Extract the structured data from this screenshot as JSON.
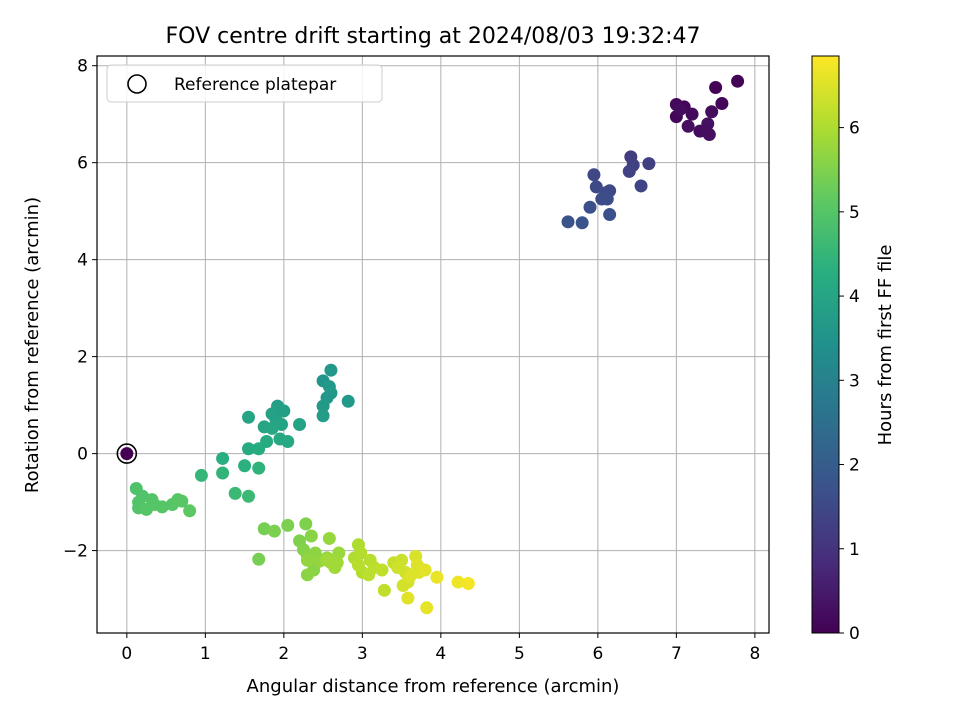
{
  "chart_data": {
    "type": "scatter",
    "title": "FOV centre drift starting at 2024/08/03 19:32:47",
    "xlabel": "Angular distance from reference (arcmin)",
    "ylabel": "Rotation from reference (arcmin)",
    "xlim": [
      -0.38,
      8.18
    ],
    "ylim": [
      -3.7,
      8.2
    ],
    "xticks": [
      0,
      1,
      2,
      3,
      4,
      5,
      6,
      7,
      8
    ],
    "yticks": [
      -2,
      0,
      2,
      4,
      6,
      8
    ],
    "grid": true,
    "legend": {
      "position": "top-left",
      "entries": [
        {
          "label": "Reference platepar",
          "marker": "hollow-circle"
        }
      ]
    },
    "colorbar": {
      "label": "Hours from first FF file",
      "colormap": "viridis",
      "range": [
        0,
        6.85
      ],
      "ticks": [
        0,
        1,
        2,
        3,
        4,
        5,
        6
      ]
    },
    "reference_point": {
      "x": 0,
      "y": 0,
      "hours": 0
    },
    "points": [
      [
        7.0,
        6.95,
        0.1
      ],
      [
        7.1,
        7.15,
        0.1
      ],
      [
        7.0,
        7.2,
        0.15
      ],
      [
        7.2,
        7.0,
        0.15
      ],
      [
        7.3,
        6.65,
        0.2
      ],
      [
        7.45,
        7.05,
        0.2
      ],
      [
        7.5,
        7.55,
        0.05
      ],
      [
        7.58,
        7.22,
        0.1
      ],
      [
        7.78,
        7.68,
        0.05
      ],
      [
        7.15,
        6.75,
        0.25
      ],
      [
        7.4,
        6.8,
        0.3
      ],
      [
        7.42,
        6.58,
        0.3
      ],
      [
        7.38,
        6.65,
        0.25
      ],
      [
        7.05,
        7.1,
        0.2
      ],
      [
        6.42,
        6.12,
        1.2
      ],
      [
        6.45,
        5.95,
        1.3
      ],
      [
        6.65,
        5.98,
        1.25
      ],
      [
        6.4,
        5.82,
        1.35
      ],
      [
        6.55,
        5.52,
        1.4
      ],
      [
        5.95,
        5.75,
        1.45
      ],
      [
        5.98,
        5.5,
        1.5
      ],
      [
        6.1,
        5.38,
        1.55
      ],
      [
        6.15,
        5.42,
        1.5
      ],
      [
        6.05,
        5.25,
        1.6
      ],
      [
        6.12,
        5.25,
        1.6
      ],
      [
        5.9,
        5.08,
        1.65
      ],
      [
        6.15,
        4.93,
        1.7
      ],
      [
        5.62,
        4.78,
        1.75
      ],
      [
        5.8,
        4.76,
        1.8
      ],
      [
        2.6,
        1.72,
        3.6
      ],
      [
        2.5,
        1.5,
        3.55
      ],
      [
        2.58,
        1.38,
        3.6
      ],
      [
        2.6,
        1.25,
        3.65
      ],
      [
        2.55,
        1.15,
        3.6
      ],
      [
        2.82,
        1.08,
        3.65
      ],
      [
        2.5,
        0.98,
        3.7
      ],
      [
        2.5,
        0.78,
        3.75
      ],
      [
        1.92,
        0.98,
        3.8
      ],
      [
        2.0,
        0.88,
        3.85
      ],
      [
        1.85,
        0.82,
        3.9
      ],
      [
        1.9,
        0.7,
        3.9
      ],
      [
        2.2,
        0.6,
        3.95
      ],
      [
        1.97,
        0.6,
        3.95
      ],
      [
        1.75,
        0.55,
        4.0
      ],
      [
        1.55,
        0.75,
        4.0
      ],
      [
        1.85,
        0.52,
        4.05
      ],
      [
        1.95,
        0.3,
        4.1
      ],
      [
        2.05,
        0.25,
        4.1
      ],
      [
        1.78,
        0.25,
        4.15
      ],
      [
        1.55,
        0.1,
        4.15
      ],
      [
        1.68,
        0.1,
        4.2
      ],
      [
        1.22,
        -0.1,
        4.3
      ],
      [
        1.5,
        -0.25,
        4.35
      ],
      [
        1.68,
        -0.3,
        4.4
      ],
      [
        0.95,
        -0.45,
        4.5
      ],
      [
        1.22,
        -0.4,
        4.45
      ],
      [
        1.38,
        -0.82,
        4.6
      ],
      [
        1.55,
        -0.88,
        4.6
      ],
      [
        0.12,
        -0.72,
        4.9
      ],
      [
        0.2,
        -0.88,
        4.9
      ],
      [
        0.15,
        -1.0,
        4.95
      ],
      [
        0.15,
        -1.12,
        4.95
      ],
      [
        0.25,
        -1.15,
        5.0
      ],
      [
        0.32,
        -0.95,
        4.95
      ],
      [
        0.35,
        -1.05,
        5.0
      ],
      [
        0.45,
        -1.1,
        5.0
      ],
      [
        0.58,
        -1.05,
        5.0
      ],
      [
        0.65,
        -0.95,
        5.05
      ],
      [
        0.7,
        -0.98,
        5.05
      ],
      [
        0.8,
        -1.18,
        5.1
      ],
      [
        1.75,
        -1.55,
        5.4
      ],
      [
        1.88,
        -1.6,
        5.45
      ],
      [
        1.68,
        -2.18,
        5.4
      ],
      [
        2.05,
        -1.48,
        5.45
      ],
      [
        2.2,
        -1.8,
        5.5
      ],
      [
        2.25,
        -1.98,
        5.55
      ],
      [
        2.28,
        -1.45,
        5.5
      ],
      [
        2.3,
        -2.1,
        5.6
      ],
      [
        2.35,
        -1.7,
        5.6
      ],
      [
        2.4,
        -2.05,
        5.65
      ],
      [
        2.38,
        -2.4,
        5.6
      ],
      [
        2.45,
        -2.22,
        5.7
      ],
      [
        2.3,
        -2.5,
        5.65
      ],
      [
        2.55,
        -2.15,
        5.75
      ],
      [
        2.58,
        -1.75,
        5.75
      ],
      [
        2.6,
        -2.25,
        5.8
      ],
      [
        2.7,
        -2.05,
        5.8
      ],
      [
        2.68,
        -2.25,
        5.85
      ],
      [
        2.65,
        -2.35,
        5.85
      ],
      [
        2.55,
        -2.2,
        5.85
      ],
      [
        2.3,
        -2.2,
        5.7
      ],
      [
        2.95,
        -1.88,
        6.0
      ],
      [
        2.9,
        -2.15,
        6.0
      ],
      [
        2.98,
        -2.05,
        6.05
      ],
      [
        3.0,
        -2.45,
        6.05
      ],
      [
        2.95,
        -2.3,
        6.1
      ],
      [
        3.1,
        -2.2,
        6.1
      ],
      [
        3.15,
        -2.35,
        6.15
      ],
      [
        3.08,
        -2.5,
        6.15
      ],
      [
        3.25,
        -2.4,
        6.2
      ],
      [
        3.28,
        -2.82,
        6.2
      ],
      [
        3.4,
        -2.25,
        6.25
      ],
      [
        3.5,
        -2.2,
        6.3
      ],
      [
        3.55,
        -2.45,
        6.35
      ],
      [
        3.58,
        -2.65,
        6.4
      ],
      [
        3.52,
        -2.72,
        6.4
      ],
      [
        3.6,
        -2.55,
        6.45
      ],
      [
        3.68,
        -2.12,
        6.45
      ],
      [
        3.7,
        -2.3,
        6.5
      ],
      [
        3.72,
        -2.45,
        6.5
      ],
      [
        3.8,
        -2.4,
        6.55
      ],
      [
        3.58,
        -2.98,
        6.55
      ],
      [
        3.82,
        -3.18,
        6.6
      ],
      [
        3.95,
        -2.55,
        6.65
      ],
      [
        4.22,
        -2.65,
        6.7
      ],
      [
        4.35,
        -2.68,
        6.75
      ],
      [
        3.62,
        -2.5,
        6.5
      ],
      [
        3.45,
        -2.35,
        6.35
      ]
    ]
  }
}
